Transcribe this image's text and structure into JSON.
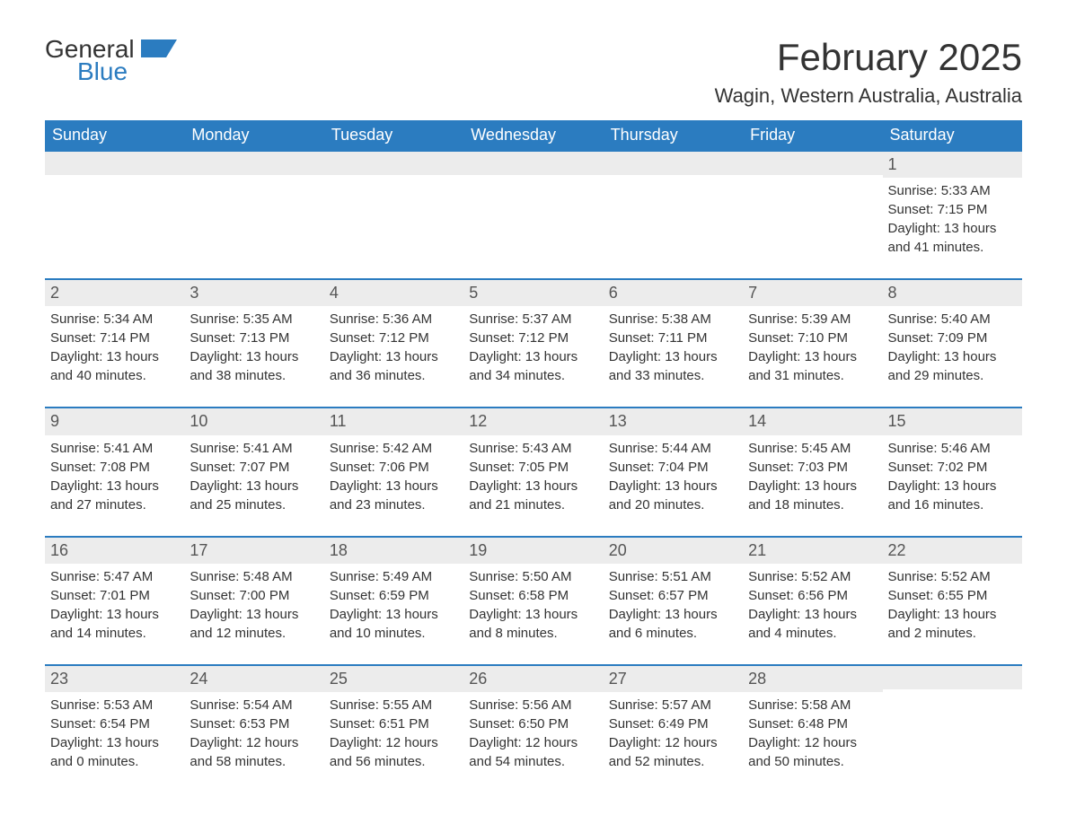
{
  "logo": {
    "word1": "General",
    "word2": "Blue"
  },
  "title": "February 2025",
  "location": "Wagin, Western Australia, Australia",
  "colors": {
    "header_bg": "#2b7cc0",
    "header_text": "#ffffff",
    "daynum_bg": "#ececec",
    "row_border": "#2b7cc0",
    "page_bg": "#ffffff",
    "text": "#333333"
  },
  "weekdays": [
    "Sunday",
    "Monday",
    "Tuesday",
    "Wednesday",
    "Thursday",
    "Friday",
    "Saturday"
  ],
  "weeks": [
    [
      null,
      null,
      null,
      null,
      null,
      null,
      {
        "n": "1",
        "sunrise": "Sunrise: 5:33 AM",
        "sunset": "Sunset: 7:15 PM",
        "daylight": "Daylight: 13 hours and 41 minutes."
      }
    ],
    [
      {
        "n": "2",
        "sunrise": "Sunrise: 5:34 AM",
        "sunset": "Sunset: 7:14 PM",
        "daylight": "Daylight: 13 hours and 40 minutes."
      },
      {
        "n": "3",
        "sunrise": "Sunrise: 5:35 AM",
        "sunset": "Sunset: 7:13 PM",
        "daylight": "Daylight: 13 hours and 38 minutes."
      },
      {
        "n": "4",
        "sunrise": "Sunrise: 5:36 AM",
        "sunset": "Sunset: 7:12 PM",
        "daylight": "Daylight: 13 hours and 36 minutes."
      },
      {
        "n": "5",
        "sunrise": "Sunrise: 5:37 AM",
        "sunset": "Sunset: 7:12 PM",
        "daylight": "Daylight: 13 hours and 34 minutes."
      },
      {
        "n": "6",
        "sunrise": "Sunrise: 5:38 AM",
        "sunset": "Sunset: 7:11 PM",
        "daylight": "Daylight: 13 hours and 33 minutes."
      },
      {
        "n": "7",
        "sunrise": "Sunrise: 5:39 AM",
        "sunset": "Sunset: 7:10 PM",
        "daylight": "Daylight: 13 hours and 31 minutes."
      },
      {
        "n": "8",
        "sunrise": "Sunrise: 5:40 AM",
        "sunset": "Sunset: 7:09 PM",
        "daylight": "Daylight: 13 hours and 29 minutes."
      }
    ],
    [
      {
        "n": "9",
        "sunrise": "Sunrise: 5:41 AM",
        "sunset": "Sunset: 7:08 PM",
        "daylight": "Daylight: 13 hours and 27 minutes."
      },
      {
        "n": "10",
        "sunrise": "Sunrise: 5:41 AM",
        "sunset": "Sunset: 7:07 PM",
        "daylight": "Daylight: 13 hours and 25 minutes."
      },
      {
        "n": "11",
        "sunrise": "Sunrise: 5:42 AM",
        "sunset": "Sunset: 7:06 PM",
        "daylight": "Daylight: 13 hours and 23 minutes."
      },
      {
        "n": "12",
        "sunrise": "Sunrise: 5:43 AM",
        "sunset": "Sunset: 7:05 PM",
        "daylight": "Daylight: 13 hours and 21 minutes."
      },
      {
        "n": "13",
        "sunrise": "Sunrise: 5:44 AM",
        "sunset": "Sunset: 7:04 PM",
        "daylight": "Daylight: 13 hours and 20 minutes."
      },
      {
        "n": "14",
        "sunrise": "Sunrise: 5:45 AM",
        "sunset": "Sunset: 7:03 PM",
        "daylight": "Daylight: 13 hours and 18 minutes."
      },
      {
        "n": "15",
        "sunrise": "Sunrise: 5:46 AM",
        "sunset": "Sunset: 7:02 PM",
        "daylight": "Daylight: 13 hours and 16 minutes."
      }
    ],
    [
      {
        "n": "16",
        "sunrise": "Sunrise: 5:47 AM",
        "sunset": "Sunset: 7:01 PM",
        "daylight": "Daylight: 13 hours and 14 minutes."
      },
      {
        "n": "17",
        "sunrise": "Sunrise: 5:48 AM",
        "sunset": "Sunset: 7:00 PM",
        "daylight": "Daylight: 13 hours and 12 minutes."
      },
      {
        "n": "18",
        "sunrise": "Sunrise: 5:49 AM",
        "sunset": "Sunset: 6:59 PM",
        "daylight": "Daylight: 13 hours and 10 minutes."
      },
      {
        "n": "19",
        "sunrise": "Sunrise: 5:50 AM",
        "sunset": "Sunset: 6:58 PM",
        "daylight": "Daylight: 13 hours and 8 minutes."
      },
      {
        "n": "20",
        "sunrise": "Sunrise: 5:51 AM",
        "sunset": "Sunset: 6:57 PM",
        "daylight": "Daylight: 13 hours and 6 minutes."
      },
      {
        "n": "21",
        "sunrise": "Sunrise: 5:52 AM",
        "sunset": "Sunset: 6:56 PM",
        "daylight": "Daylight: 13 hours and 4 minutes."
      },
      {
        "n": "22",
        "sunrise": "Sunrise: 5:52 AM",
        "sunset": "Sunset: 6:55 PM",
        "daylight": "Daylight: 13 hours and 2 minutes."
      }
    ],
    [
      {
        "n": "23",
        "sunrise": "Sunrise: 5:53 AM",
        "sunset": "Sunset: 6:54 PM",
        "daylight": "Daylight: 13 hours and 0 minutes."
      },
      {
        "n": "24",
        "sunrise": "Sunrise: 5:54 AM",
        "sunset": "Sunset: 6:53 PM",
        "daylight": "Daylight: 12 hours and 58 minutes."
      },
      {
        "n": "25",
        "sunrise": "Sunrise: 5:55 AM",
        "sunset": "Sunset: 6:51 PM",
        "daylight": "Daylight: 12 hours and 56 minutes."
      },
      {
        "n": "26",
        "sunrise": "Sunrise: 5:56 AM",
        "sunset": "Sunset: 6:50 PM",
        "daylight": "Daylight: 12 hours and 54 minutes."
      },
      {
        "n": "27",
        "sunrise": "Sunrise: 5:57 AM",
        "sunset": "Sunset: 6:49 PM",
        "daylight": "Daylight: 12 hours and 52 minutes."
      },
      {
        "n": "28",
        "sunrise": "Sunrise: 5:58 AM",
        "sunset": "Sunset: 6:48 PM",
        "daylight": "Daylight: 12 hours and 50 minutes."
      },
      null
    ]
  ]
}
